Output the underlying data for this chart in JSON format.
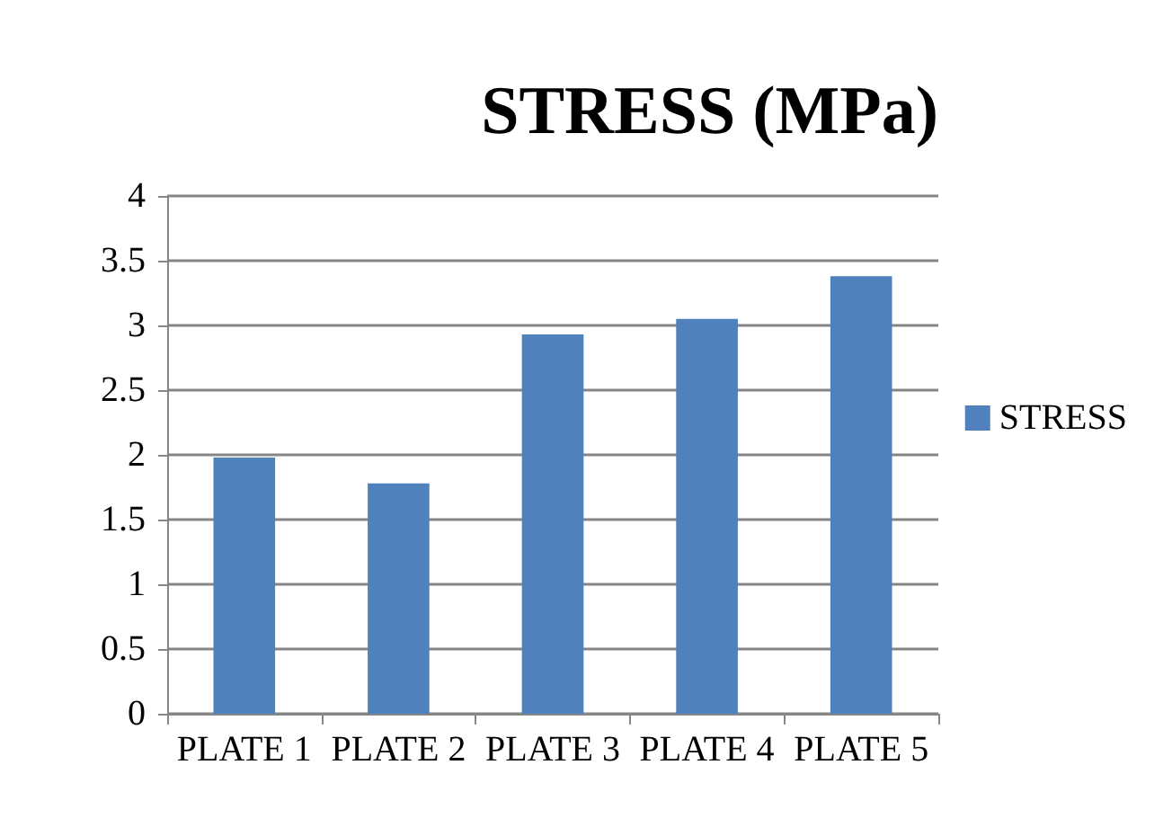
{
  "chart_data": {
    "type": "bar",
    "title": "STRESS (MPa)",
    "categories": [
      "PLATE 1",
      "PLATE 2",
      "PLATE 3",
      "PLATE 4",
      "PLATE 5"
    ],
    "series": [
      {
        "name": "STRESS",
        "color": "#4f81bd",
        "values": [
          1.98,
          1.78,
          2.93,
          3.05,
          3.38
        ]
      }
    ],
    "ylim": [
      0,
      4
    ],
    "yticks": [
      0,
      0.5,
      1,
      1.5,
      2,
      2.5,
      3,
      3.5,
      4
    ],
    "grid": "y",
    "legend": "right"
  }
}
